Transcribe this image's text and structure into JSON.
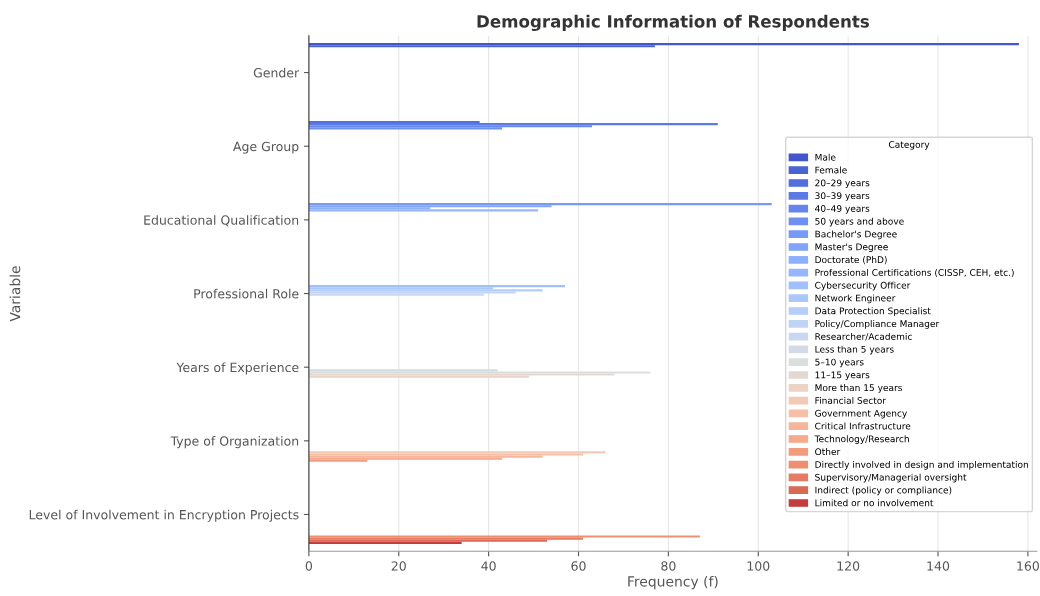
{
  "chart_data": {
    "type": "bar",
    "orientation": "horizontal",
    "title": "Demographic Information of Respondents",
    "xlabel": "Frequency (f)",
    "ylabel": "Variable",
    "legend_title": "Category",
    "legend": "right",
    "grid": "x",
    "categories": [
      "Gender",
      "Age Group",
      "Educational Qualification",
      "Professional Role",
      "Years of Experience",
      "Type of Organization",
      "Level of Involvement in Encryption Projects"
    ],
    "xlim": [
      0,
      162
    ],
    "xticks": [
      0,
      20,
      40,
      60,
      80,
      100,
      120,
      140,
      160
    ],
    "series": [
      {
        "name": "Male",
        "color": "#4257c9",
        "values": [
          158,
          null,
          null,
          null,
          null,
          null,
          null
        ]
      },
      {
        "name": "Female",
        "color": "#4a63d3",
        "values": [
          77,
          null,
          null,
          null,
          null,
          null,
          null
        ]
      },
      {
        "name": "20–29 years",
        "color": "#536edd",
        "values": [
          null,
          38,
          null,
          null,
          null,
          null,
          null
        ]
      },
      {
        "name": "30–39 years",
        "color": "#5b7ae5",
        "values": [
          null,
          91,
          null,
          null,
          null,
          null,
          null
        ]
      },
      {
        "name": "40–49 years",
        "color": "#6485ec",
        "values": [
          null,
          63,
          null,
          null,
          null,
          null,
          null
        ]
      },
      {
        "name": "50 years and above",
        "color": "#6e90f2",
        "values": [
          null,
          43,
          null,
          null,
          null,
          null,
          null
        ]
      },
      {
        "name": "Bachelor's Degree",
        "color": "#779af7",
        "values": [
          null,
          null,
          103,
          null,
          null,
          null,
          null
        ]
      },
      {
        "name": "Master's Degree",
        "color": "#81a4fb",
        "values": [
          null,
          null,
          54,
          null,
          null,
          null,
          null
        ]
      },
      {
        "name": "Doctorate (PhD)",
        "color": "#8caffe",
        "values": [
          null,
          null,
          27,
          null,
          null,
          null,
          null
        ]
      },
      {
        "name": "Professional Certifications (CISSP, CEH, etc.)",
        "color": "#96b7ff",
        "values": [
          null,
          null,
          51,
          null,
          null,
          null,
          null
        ]
      },
      {
        "name": "Cybersecurity Officer",
        "color": "#a1c0ff",
        "values": [
          null,
          null,
          null,
          57,
          null,
          null,
          null
        ]
      },
      {
        "name": "Network Engineer",
        "color": "#abc8fd",
        "values": [
          null,
          null,
          null,
          41,
          null,
          null,
          null
        ]
      },
      {
        "name": "Data Protection Specialist",
        "color": "#b5cdfa",
        "values": [
          null,
          null,
          null,
          52,
          null,
          null,
          null
        ]
      },
      {
        "name": "Policy/Compliance Manager",
        "color": "#c0d4f5",
        "values": [
          null,
          null,
          null,
          46,
          null,
          null,
          null
        ]
      },
      {
        "name": "Researcher/Academic",
        "color": "#c9d7f0",
        "values": [
          null,
          null,
          null,
          39,
          null,
          null,
          null
        ]
      },
      {
        "name": "Less than 5 years",
        "color": "#d3dbe7",
        "values": [
          null,
          null,
          null,
          null,
          42,
          null,
          null
        ]
      },
      {
        "name": "5–10 years",
        "color": "#dcdddd",
        "values": [
          null,
          null,
          null,
          null,
          76,
          null,
          null
        ]
      },
      {
        "name": "11–15 years",
        "color": "#e4d9d2",
        "values": [
          null,
          null,
          null,
          null,
          68,
          null,
          null
        ]
      },
      {
        "name": "More than 15 years",
        "color": "#ecd3c5",
        "values": [
          null,
          null,
          null,
          null,
          49,
          null,
          null
        ]
      },
      {
        "name": "Financial Sector",
        "color": "#f2cab5",
        "values": [
          null,
          null,
          null,
          null,
          null,
          66,
          null
        ]
      },
      {
        "name": "Government Agency",
        "color": "#f5c0a7",
        "values": [
          null,
          null,
          null,
          null,
          null,
          61,
          null
        ]
      },
      {
        "name": "Critical Infrastructure",
        "color": "#f7b599",
        "values": [
          null,
          null,
          null,
          null,
          null,
          52,
          null
        ]
      },
      {
        "name": "Technology/Research",
        "color": "#f6a98b",
        "values": [
          null,
          null,
          null,
          null,
          null,
          43,
          null
        ]
      },
      {
        "name": "Other",
        "color": "#f39c7d",
        "values": [
          null,
          null,
          null,
          null,
          null,
          13,
          null
        ]
      },
      {
        "name": "Directly involved in design and implementation",
        "color": "#ee8f70",
        "values": [
          null,
          null,
          null,
          null,
          null,
          null,
          87
        ]
      },
      {
        "name": "Supervisory/Managerial oversight",
        "color": "#e57b62",
        "values": [
          null,
          null,
          null,
          null,
          null,
          null,
          61
        ]
      },
      {
        "name": "Indirect (policy or compliance)",
        "color": "#d86a55",
        "values": [
          null,
          null,
          null,
          null,
          null,
          null,
          53
        ]
      },
      {
        "name": "Limited or no involvement",
        "color": "#c43c3c",
        "values": [
          null,
          null,
          null,
          null,
          null,
          null,
          34
        ]
      }
    ]
  }
}
